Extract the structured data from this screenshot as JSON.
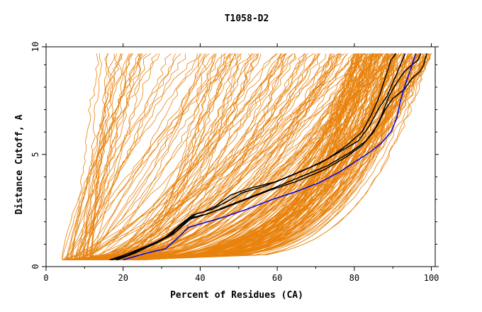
{
  "chart_data": {
    "type": "line",
    "title": "T1058-D2",
    "xlabel": "Percent of Residues (CA)",
    "ylabel": "Distance Cutoff, A",
    "xlim": [
      0,
      101
    ],
    "ylim": [
      0,
      9.8
    ],
    "x_ticks": [
      0,
      20,
      40,
      60,
      80,
      100
    ],
    "x_tick_labels": [
      "0",
      "20",
      "40",
      "60",
      "80",
      "100"
    ],
    "y_ticks": [
      0,
      5,
      10
    ],
    "y_tick_labels": [
      "0",
      "5",
      "10"
    ],
    "grid": false,
    "legend": "none",
    "colors": {
      "background_models": "#e8820c",
      "highlighted_black": "#000000",
      "highlighted_blue": "#0000dd"
    },
    "highlighted_series": [
      {
        "color": "#000000",
        "points": [
          [
            16.5,
            0.3
          ],
          [
            20,
            0.5
          ],
          [
            26,
            0.9
          ],
          [
            31,
            1.3
          ],
          [
            35,
            1.9
          ],
          [
            38,
            2.3
          ],
          [
            41,
            2.45
          ],
          [
            44,
            2.7
          ],
          [
            48,
            3.2
          ],
          [
            53,
            3.5
          ],
          [
            60,
            3.8
          ],
          [
            67,
            4.3
          ],
          [
            73,
            4.8
          ],
          [
            78,
            5.4
          ],
          [
            82,
            6.0
          ],
          [
            84.5,
            6.8
          ],
          [
            86.5,
            7.6
          ],
          [
            88,
            8.4
          ],
          [
            89.5,
            9.2
          ],
          [
            90.8,
            9.5
          ]
        ]
      },
      {
        "color": "#000000",
        "points": [
          [
            17,
            0.3
          ],
          [
            21,
            0.5
          ],
          [
            27,
            0.95
          ],
          [
            32,
            1.4
          ],
          [
            36,
            2.0
          ],
          [
            39,
            2.35
          ],
          [
            43,
            2.55
          ],
          [
            47,
            2.9
          ],
          [
            51,
            3.3
          ],
          [
            57,
            3.6
          ],
          [
            64,
            4.1
          ],
          [
            71,
            4.6
          ],
          [
            76,
            5.1
          ],
          [
            81,
            5.6
          ],
          [
            84,
            6.3
          ],
          [
            86.5,
            7.1
          ],
          [
            88.5,
            7.6
          ],
          [
            90,
            8.2
          ],
          [
            92,
            9.0
          ],
          [
            93.2,
            9.5
          ]
        ]
      },
      {
        "color": "#000000",
        "points": [
          [
            18,
            0.3
          ],
          [
            22,
            0.55
          ],
          [
            28,
            1.0
          ],
          [
            33,
            1.45
          ],
          [
            37,
            2.1
          ],
          [
            41,
            2.3
          ],
          [
            46,
            2.6
          ],
          [
            52,
            3.0
          ],
          [
            58,
            3.4
          ],
          [
            65,
            3.8
          ],
          [
            72,
            4.3
          ],
          [
            78,
            4.9
          ],
          [
            82,
            5.4
          ],
          [
            85,
            6.0
          ],
          [
            87,
            6.7
          ],
          [
            89,
            7.6
          ],
          [
            91,
            8.2
          ],
          [
            93,
            8.7
          ],
          [
            95,
            9.0
          ],
          [
            96.5,
            9.2
          ],
          [
            97.3,
            9.5
          ]
        ]
      },
      {
        "color": "#000000",
        "points": [
          [
            18.5,
            0.3
          ],
          [
            23,
            0.6
          ],
          [
            29,
            1.1
          ],
          [
            34,
            1.6
          ],
          [
            38,
            2.2
          ],
          [
            42,
            2.35
          ],
          [
            47,
            2.7
          ],
          [
            53,
            3.1
          ],
          [
            59,
            3.5
          ],
          [
            66,
            4.0
          ],
          [
            73,
            4.5
          ],
          [
            79,
            5.1
          ],
          [
            83,
            5.6
          ],
          [
            86,
            6.3
          ],
          [
            88,
            7.0
          ],
          [
            90,
            7.5
          ],
          [
            93,
            7.9
          ],
          [
            95,
            8.4
          ],
          [
            97,
            8.7
          ],
          [
            98,
            9.0
          ],
          [
            98.8,
            9.5
          ]
        ]
      },
      {
        "color": "#0000dd",
        "points": [
          [
            20,
            0.3
          ],
          [
            26,
            0.6
          ],
          [
            31,
            0.8
          ],
          [
            34,
            1.25
          ],
          [
            37,
            1.75
          ],
          [
            41,
            1.95
          ],
          [
            46,
            2.2
          ],
          [
            52,
            2.55
          ],
          [
            58,
            2.95
          ],
          [
            65,
            3.35
          ],
          [
            71,
            3.75
          ],
          [
            76,
            4.2
          ],
          [
            80,
            4.65
          ],
          [
            84,
            5.1
          ],
          [
            87,
            5.5
          ],
          [
            89.5,
            6.0
          ],
          [
            91,
            6.6
          ],
          [
            92,
            7.4
          ],
          [
            93,
            8.0
          ],
          [
            94,
            8.5
          ],
          [
            95,
            9.0
          ],
          [
            96,
            9.5
          ]
        ]
      }
    ]
  }
}
